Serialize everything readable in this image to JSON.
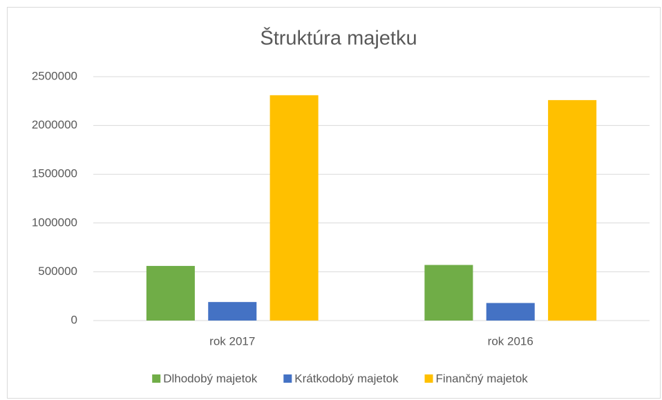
{
  "chart_data": {
    "type": "bar",
    "title": "Štruktúra majetku",
    "categories": [
      "rok 2017",
      "rok 2016"
    ],
    "series": [
      {
        "name": "Dlhodobý majetok",
        "color": "#70ad47",
        "values": [
          560000,
          570000
        ]
      },
      {
        "name": "Krátkodobý majetok",
        "color": "#4472c4",
        "values": [
          190000,
          180000
        ]
      },
      {
        "name": "Finančný majetok",
        "color": "#ffc000",
        "values": [
          2310000,
          2260000
        ]
      }
    ],
    "ylim": [
      0,
      2500000
    ],
    "yticks": [
      0,
      500000,
      1000000,
      1500000,
      2000000,
      2500000
    ],
    "grid": true,
    "legend": "bottom"
  }
}
